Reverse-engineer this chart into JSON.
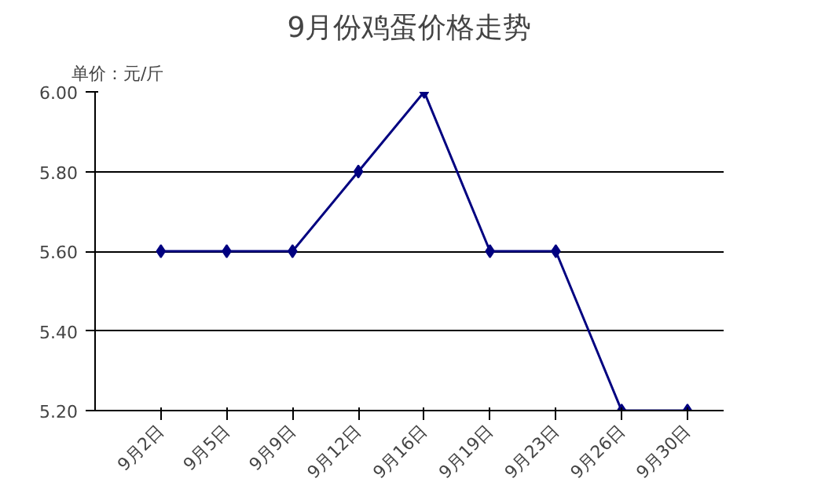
{
  "chart_data": {
    "type": "line",
    "title": "9月份鸡蛋价格走势",
    "ylabel": "单价：元/斤",
    "categories": [
      "9月2日",
      "9月5日",
      "9月9日",
      "9月12日",
      "9月16日",
      "9月19日",
      "9月23日",
      "9月26日",
      "9月30日"
    ],
    "series": [
      {
        "color": "#000080",
        "values": [
          5.6,
          5.6,
          5.6,
          5.8,
          6.0,
          5.6,
          5.6,
          5.2,
          5.2
        ]
      }
    ],
    "ylim": [
      5.2,
      6.0
    ],
    "yticks": [
      {
        "value": 5.2,
        "label": "5.20"
      },
      {
        "value": 5.4,
        "label": "5.40"
      },
      {
        "value": 5.6,
        "label": "5.60"
      },
      {
        "value": 5.8,
        "label": "5.80"
      },
      {
        "value": 6.0,
        "label": "6.00"
      }
    ],
    "grid": "y",
    "marker": "diamond",
    "line_style": "solid"
  }
}
